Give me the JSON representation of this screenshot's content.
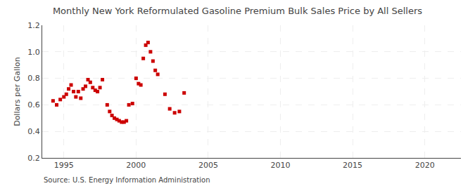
{
  "chart_data": {
    "type": "scatter",
    "title": "Monthly New York Reformulated Gasoline Premium Bulk Sales Price by All Sellers",
    "ylabel": "Dollars per Gallon",
    "annotations": [
      "Source: U.S. Energy Information Administration"
    ],
    "x": [
      1994.25,
      1994.5,
      1994.75,
      1995.0,
      1995.17,
      1995.33,
      1995.5,
      1995.67,
      1995.83,
      1996.0,
      1996.17,
      1996.33,
      1996.5,
      1996.67,
      1996.83,
      1997.0,
      1997.17,
      1997.33,
      1997.5,
      1997.67,
      1998.0,
      1998.17,
      1998.33,
      1998.5,
      1998.67,
      1998.83,
      1999.0,
      1999.17,
      1999.33,
      1999.5,
      1999.75,
      2000.0,
      2000.17,
      2000.33,
      2000.5,
      2000.67,
      2000.83,
      2001.0,
      2001.17,
      2001.33,
      2001.5,
      2002.0,
      2002.33,
      2002.67,
      2003.0,
      2003.33
    ],
    "values": [
      0.63,
      0.6,
      0.64,
      0.66,
      0.68,
      0.72,
      0.75,
      0.7,
      0.66,
      0.7,
      0.65,
      0.72,
      0.74,
      0.79,
      0.77,
      0.73,
      0.71,
      0.7,
      0.73,
      0.79,
      0.6,
      0.55,
      0.52,
      0.5,
      0.49,
      0.48,
      0.47,
      0.47,
      0.48,
      0.6,
      0.61,
      0.8,
      0.76,
      0.75,
      0.95,
      1.05,
      1.07,
      1.0,
      0.93,
      0.86,
      0.83,
      0.68,
      0.57,
      0.54,
      0.55,
      0.69
    ],
    "color": "#cc0000",
    "marker": "square",
    "xlim": [
      1993.5,
      2022.5
    ],
    "ylim": [
      0.2,
      1.2
    ],
    "xticks": [
      1995,
      2000,
      2005,
      2010,
      2015,
      2020
    ],
    "yticks": [
      0.2,
      0.4,
      0.6,
      0.8,
      {
        "value": 1.0,
        "label": "1.0"
      },
      1.2
    ],
    "grid": true
  }
}
